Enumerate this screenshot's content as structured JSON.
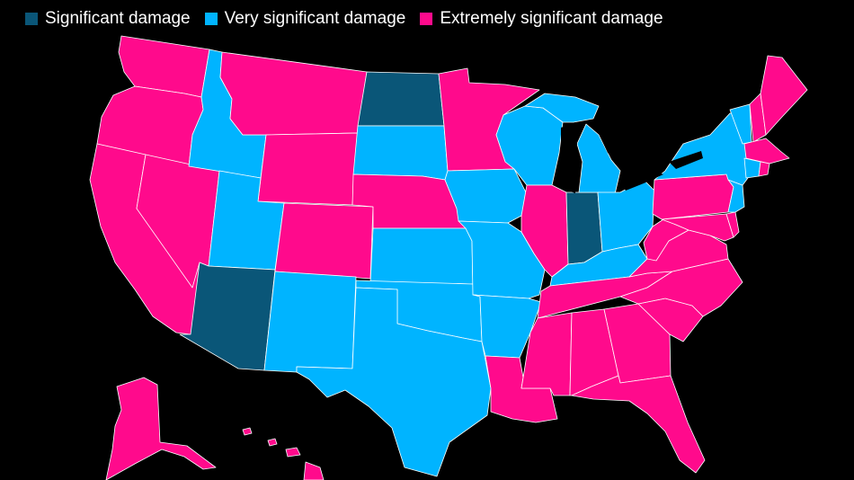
{
  "colors": {
    "significant": "#0a5678",
    "very_significant": "#00b4ff",
    "extremely_significant": "#ff0a8c",
    "background": "#000000",
    "border": "#ffffff"
  },
  "legend": [
    {
      "key": "significant",
      "label": "Significant damage",
      "color": "#0a5678"
    },
    {
      "key": "very_significant",
      "label": "Very significant damage",
      "color": "#00b4ff"
    },
    {
      "key": "extremely_significant",
      "label": "Extremely significant damage",
      "color": "#ff0a8c"
    }
  ],
  "states": {
    "WA": "extremely_significant",
    "OR": "extremely_significant",
    "CA": "extremely_significant",
    "NV": "extremely_significant",
    "ID": "very_significant",
    "MT": "extremely_significant",
    "WY": "extremely_significant",
    "UT": "very_significant",
    "AZ": "significant",
    "CO": "extremely_significant",
    "NM": "very_significant",
    "ND": "significant",
    "SD": "very_significant",
    "NE": "extremely_significant",
    "KS": "very_significant",
    "OK": "very_significant",
    "TX": "very_significant",
    "MN": "extremely_significant",
    "IA": "very_significant",
    "MO": "very_significant",
    "AR": "very_significant",
    "LA": "extremely_significant",
    "WI": "very_significant",
    "IL": "extremely_significant",
    "IN": "significant",
    "MI": "very_significant",
    "OH": "very_significant",
    "KY": "very_significant",
    "TN": "extremely_significant",
    "MS": "extremely_significant",
    "AL": "extremely_significant",
    "GA": "extremely_significant",
    "FL": "extremely_significant",
    "SC": "extremely_significant",
    "NC": "extremely_significant",
    "VA": "extremely_significant",
    "WV": "extremely_significant",
    "PA": "extremely_significant",
    "NY": "very_significant",
    "VT": "very_significant",
    "NH": "extremely_significant",
    "ME": "extremely_significant",
    "MA": "extremely_significant",
    "CT": "very_significant",
    "RI": "extremely_significant",
    "NJ": "very_significant",
    "MD": "extremely_significant",
    "DE": "extremely_significant",
    "AK": "extremely_significant",
    "HI": "extremely_significant"
  }
}
